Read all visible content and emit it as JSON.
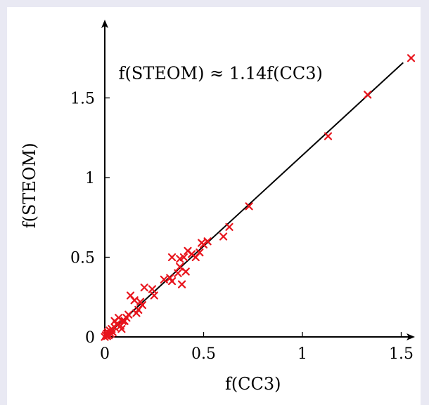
{
  "chart_data": {
    "type": "scatter",
    "xlabel": "f(CC3)",
    "ylabel": "f(STEOM)",
    "xlim": [
      0,
      1.55
    ],
    "ylim": [
      0,
      1.85
    ],
    "xticks": [
      {
        "value": 0,
        "label": "0"
      },
      {
        "value": 0.5,
        "label": "0.5"
      },
      {
        "value": 1,
        "label": "1"
      },
      {
        "value": 1.5,
        "label": "1.5"
      }
    ],
    "yticks": [
      {
        "value": 0,
        "label": "0"
      },
      {
        "value": 0.5,
        "label": "0.5"
      },
      {
        "value": 1,
        "label": "1"
      },
      {
        "value": 1.5,
        "label": "1.5"
      }
    ],
    "marker_color": "#e8141c",
    "line_color": "#000000",
    "fit": {
      "slope": 1.14,
      "x_range": [
        0,
        1.51
      ],
      "annotation": "f(STEOM) ≈ 1.14f(CC3)"
    },
    "points": [
      [
        0.0,
        0.0
      ],
      [
        0.005,
        0.01
      ],
      [
        0.01,
        0.02
      ],
      [
        0.012,
        0.005
      ],
      [
        0.015,
        0.03
      ],
      [
        0.02,
        0.01
      ],
      [
        0.025,
        0.04
      ],
      [
        0.03,
        0.02
      ],
      [
        0.035,
        0.05
      ],
      [
        0.04,
        0.03
      ],
      [
        0.05,
        0.06
      ],
      [
        0.05,
        0.1
      ],
      [
        0.06,
        0.08
      ],
      [
        0.07,
        0.12
      ],
      [
        0.08,
        0.07
      ],
      [
        0.085,
        0.05
      ],
      [
        0.09,
        0.1
      ],
      [
        0.1,
        0.1
      ],
      [
        0.11,
        0.12
      ],
      [
        0.12,
        0.14
      ],
      [
        0.13,
        0.26
      ],
      [
        0.15,
        0.23
      ],
      [
        0.16,
        0.15
      ],
      [
        0.17,
        0.17
      ],
      [
        0.18,
        0.22
      ],
      [
        0.19,
        0.2
      ],
      [
        0.2,
        0.31
      ],
      [
        0.24,
        0.3
      ],
      [
        0.25,
        0.26
      ],
      [
        0.3,
        0.36
      ],
      [
        0.33,
        0.37
      ],
      [
        0.34,
        0.35
      ],
      [
        0.34,
        0.5
      ],
      [
        0.37,
        0.4
      ],
      [
        0.38,
        0.44
      ],
      [
        0.38,
        0.49
      ],
      [
        0.39,
        0.33
      ],
      [
        0.4,
        0.5
      ],
      [
        0.41,
        0.41
      ],
      [
        0.42,
        0.54
      ],
      [
        0.44,
        0.52
      ],
      [
        0.46,
        0.5
      ],
      [
        0.48,
        0.53
      ],
      [
        0.49,
        0.59
      ],
      [
        0.5,
        0.58
      ],
      [
        0.52,
        0.6
      ],
      [
        0.6,
        0.63
      ],
      [
        0.63,
        0.69
      ],
      [
        0.73,
        0.82
      ],
      [
        1.13,
        1.26
      ],
      [
        1.33,
        1.52
      ],
      [
        1.55,
        1.75
      ]
    ]
  }
}
